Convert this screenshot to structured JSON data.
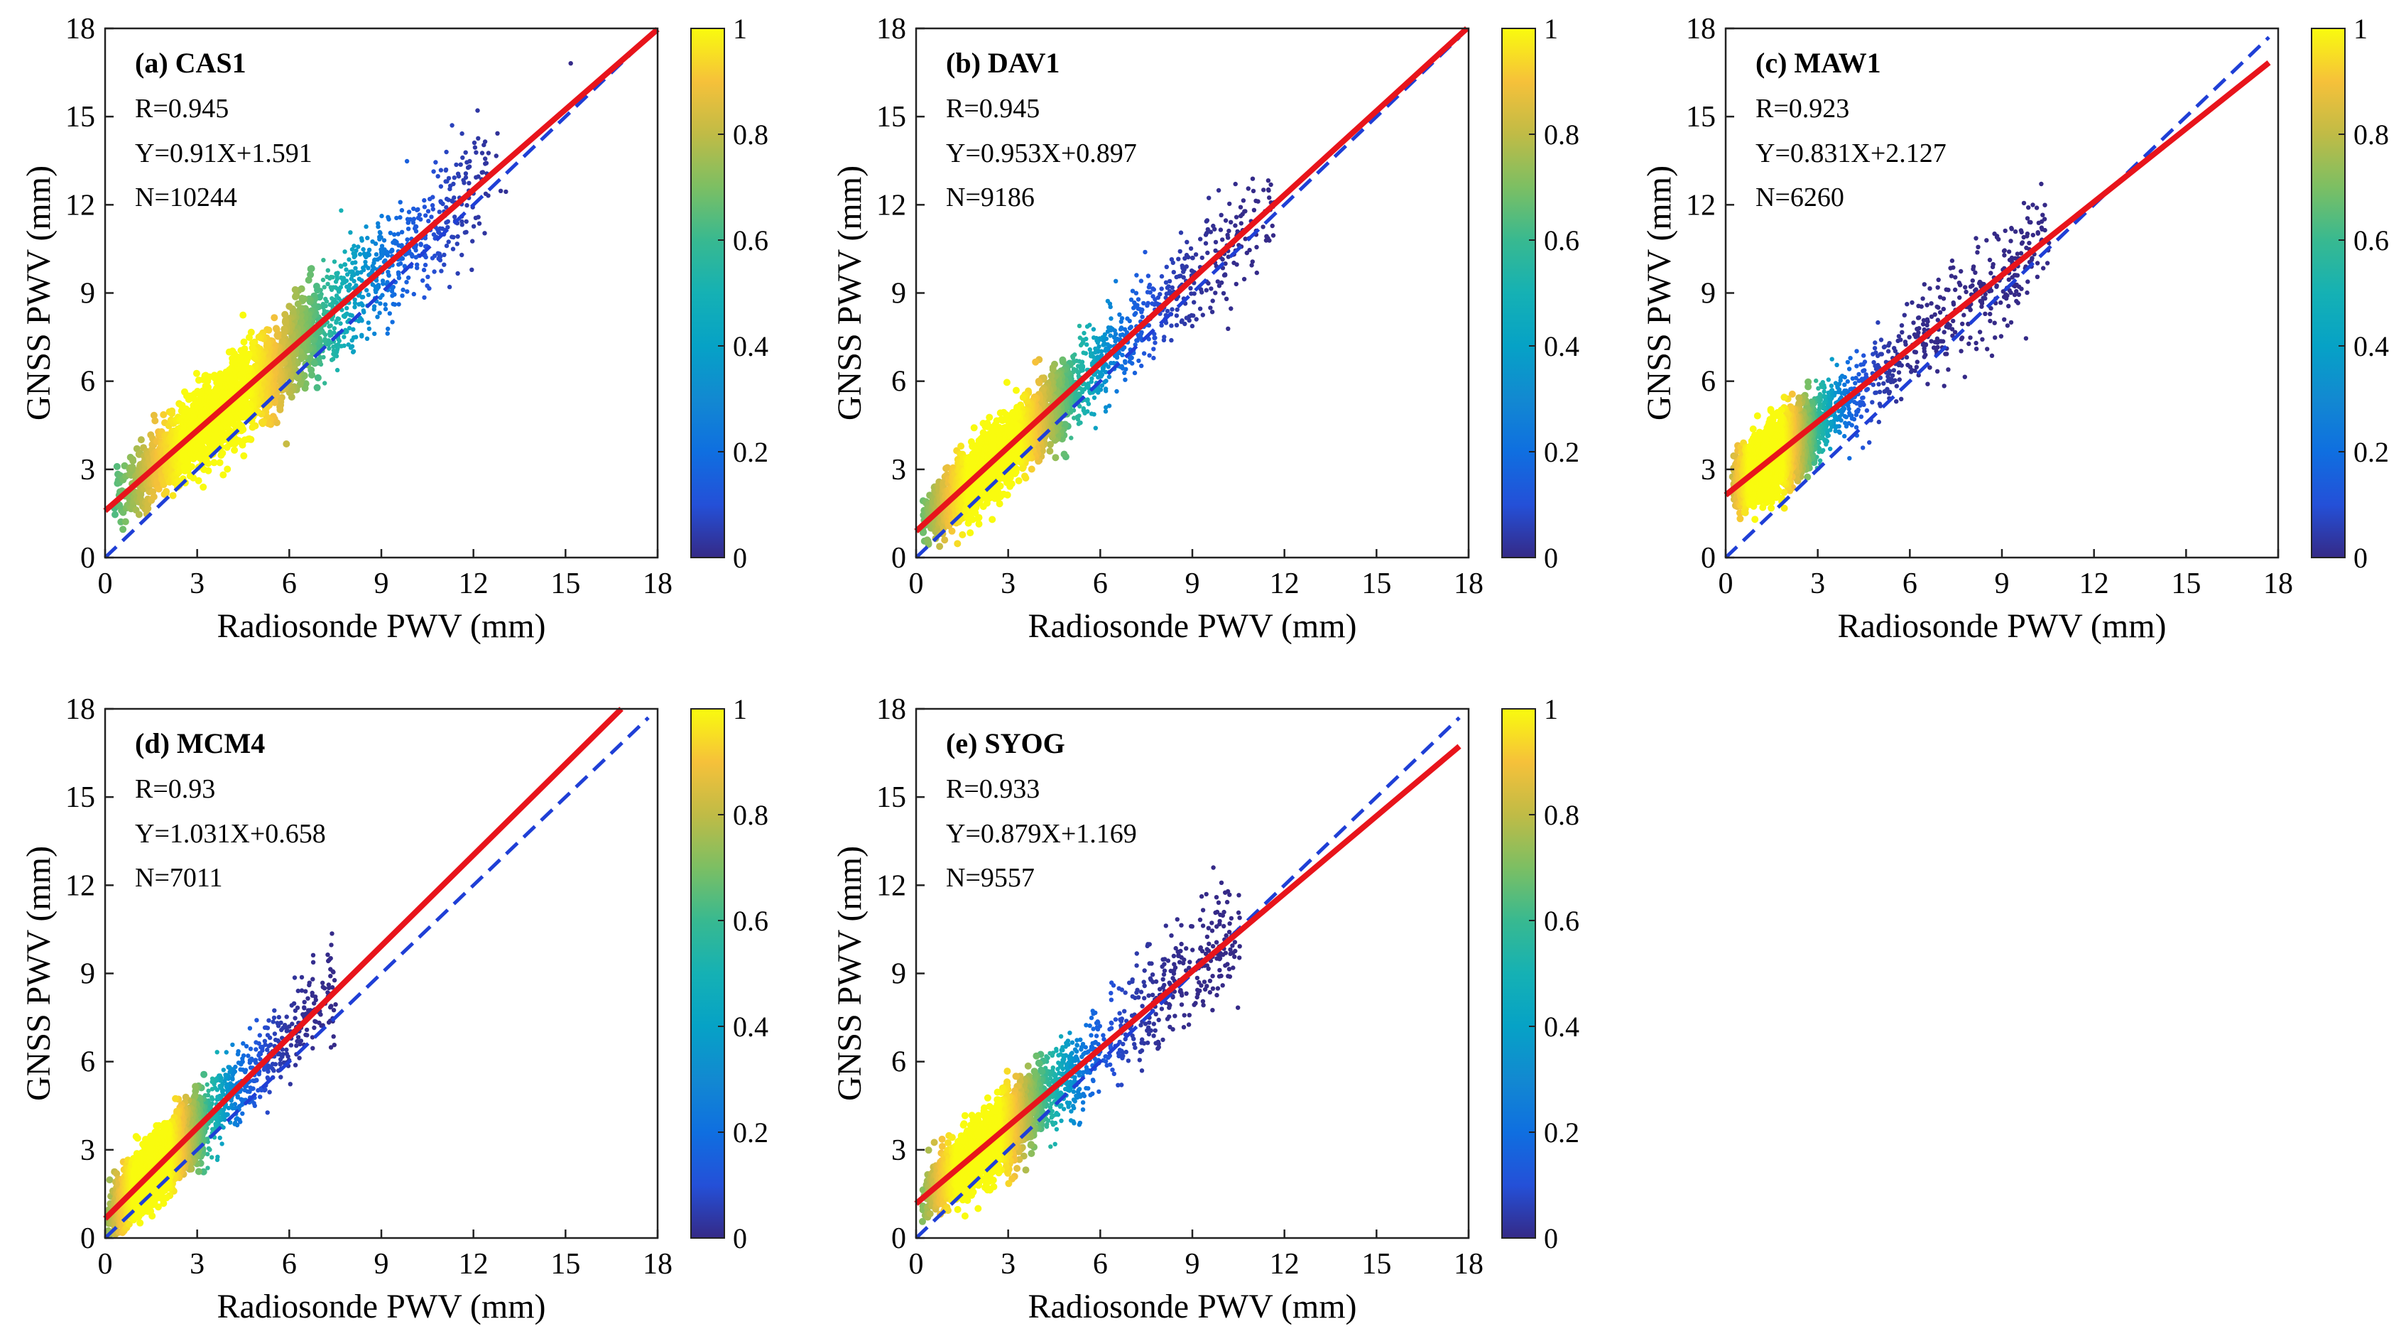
{
  "chart_data": [
    {
      "type": "scatter",
      "panel_title": "(a) CAS1",
      "stats": [
        "R=0.945",
        "Y=0.91X+1.591",
        "N=10244"
      ],
      "xlabel": "Radiosonde PWV (mm)",
      "ylabel": "GNSS PWV (mm)",
      "xlim": [
        0,
        18
      ],
      "ylim": [
        0,
        18
      ],
      "xticks": [
        "0",
        "3",
        "6",
        "9",
        "12",
        "15",
        "18"
      ],
      "yticks": [
        "0",
        "3",
        "6",
        "9",
        "12",
        "15",
        "18"
      ],
      "fit": {
        "slope": 0.91,
        "intercept": 1.591,
        "color": "#e8141b"
      },
      "one_to_one": {
        "color": "#1f3fd6"
      },
      "density_cloud": {
        "x_range": [
          0.3,
          16.5
        ],
        "spread": 0.95,
        "peak_x": 3.6
      },
      "colorbar": {
        "range": [
          0,
          1
        ],
        "ticks": [
          "0",
          "0.2",
          "0.4",
          "0.6",
          "0.8",
          "1"
        ],
        "colormap": "parula"
      },
      "grid": false
    },
    {
      "type": "scatter",
      "panel_title": "(b) DAV1",
      "stats": [
        "R=0.945",
        "Y=0.953X+0.897",
        "N=9186"
      ],
      "xlabel": "Radiosonde PWV (mm)",
      "ylabel": "GNSS PWV (mm)",
      "xlim": [
        0,
        18
      ],
      "ylim": [
        0,
        18
      ],
      "xticks": [
        "0",
        "3",
        "6",
        "9",
        "12",
        "15",
        "18"
      ],
      "yticks": [
        "0",
        "3",
        "6",
        "9",
        "12",
        "15",
        "18"
      ],
      "fit": {
        "slope": 0.953,
        "intercept": 0.897,
        "color": "#e8141b"
      },
      "one_to_one": {
        "color": "#1f3fd6"
      },
      "density_cloud": {
        "x_range": [
          0.2,
          15.5
        ],
        "spread": 0.85,
        "peak_x": 2.5
      },
      "colorbar": {
        "range": [
          0,
          1
        ],
        "ticks": [
          "0",
          "0.2",
          "0.4",
          "0.6",
          "0.8",
          "1"
        ],
        "colormap": "parula"
      },
      "grid": false
    },
    {
      "type": "scatter",
      "panel_title": "(c) MAW1",
      "stats": [
        "R=0.923",
        "Y=0.831X+2.127",
        "N=6260"
      ],
      "xlabel": "Radiosonde PWV (mm)",
      "ylabel": "GNSS PWV (mm)",
      "xlim": [
        0,
        18
      ],
      "ylim": [
        0,
        18
      ],
      "xticks": [
        "0",
        "3",
        "6",
        "9",
        "12",
        "15",
        "18"
      ],
      "yticks": [
        "0",
        "3",
        "6",
        "9",
        "12",
        "15",
        "18"
      ],
      "fit": {
        "slope": 0.831,
        "intercept": 2.127,
        "color": "#e8141b"
      },
      "one_to_one": {
        "color": "#1f3fd6"
      },
      "density_cloud": {
        "x_range": [
          0.2,
          14
        ],
        "spread": 0.9,
        "peak_x": 1.3
      },
      "colorbar": {
        "range": [
          0,
          1
        ],
        "ticks": [
          "0",
          "0.2",
          "0.4",
          "0.6",
          "0.8",
          "1"
        ],
        "colormap": "parula"
      },
      "grid": false
    },
    {
      "type": "scatter",
      "panel_title": "(d) MCM4",
      "stats": [
        "R=0.93",
        "Y=1.031X+0.658",
        "N=7011"
      ],
      "xlabel": "Radiosonde PWV (mm)",
      "ylabel": "GNSS PWV (mm)",
      "xlim": [
        0,
        18
      ],
      "ylim": [
        0,
        18
      ],
      "xticks": [
        "0",
        "3",
        "6",
        "9",
        "12",
        "15",
        "18"
      ],
      "yticks": [
        "0",
        "3",
        "6",
        "9",
        "12",
        "15",
        "18"
      ],
      "fit": {
        "slope": 1.031,
        "intercept": 0.658,
        "color": "#e8141b"
      },
      "one_to_one": {
        "color": "#1f3fd6"
      },
      "density_cloud": {
        "x_range": [
          0.1,
          10
        ],
        "spread": 0.85,
        "peak_x": 1.5
      },
      "colorbar": {
        "range": [
          0,
          1
        ],
        "ticks": [
          "0",
          "0.2",
          "0.4",
          "0.6",
          "0.8",
          "1"
        ],
        "colormap": "parula"
      },
      "grid": false
    },
    {
      "type": "scatter",
      "panel_title": "(e) SYOG",
      "stats": [
        "R=0.933",
        "Y=0.879X+1.169",
        "N=9557"
      ],
      "xlabel": "Radiosonde PWV (mm)",
      "ylabel": "GNSS PWV (mm)",
      "xlim": [
        0,
        18
      ],
      "ylim": [
        0,
        18
      ],
      "xticks": [
        "0",
        "3",
        "6",
        "9",
        "12",
        "15",
        "18"
      ],
      "yticks": [
        "0",
        "3",
        "6",
        "9",
        "12",
        "15",
        "18"
      ],
      "fit": {
        "slope": 0.879,
        "intercept": 1.169,
        "color": "#e8141b"
      },
      "one_to_one": {
        "color": "#1f3fd6"
      },
      "density_cloud": {
        "x_range": [
          0.2,
          14
        ],
        "spread": 0.9,
        "peak_x": 2.0
      },
      "colorbar": {
        "range": [
          0,
          1
        ],
        "ticks": [
          "0",
          "0.2",
          "0.4",
          "0.6",
          "0.8",
          "1"
        ],
        "colormap": "parula"
      },
      "grid": false
    }
  ]
}
